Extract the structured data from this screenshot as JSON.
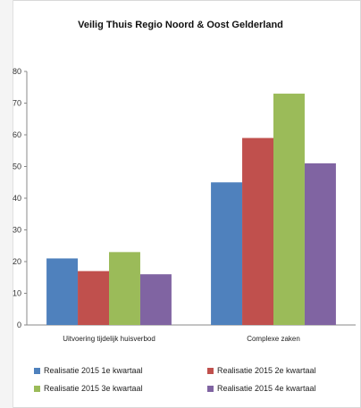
{
  "chart_data": {
    "type": "bar",
    "title": "Veilig Thuis Regio Noord & Oost Gelderland",
    "categories": [
      "Uitvoering tijdelijk huisverbod",
      "Complexe zaken"
    ],
    "series": [
      {
        "name": "Realisatie 2015 1e kwartaal",
        "values": [
          21,
          45
        ],
        "color": "#4f81bd"
      },
      {
        "name": "Realisatie 2015 2e kwartaal",
        "values": [
          17,
          59
        ],
        "color": "#c0504d"
      },
      {
        "name": "Realisatie 2015 3e kwartaal",
        "values": [
          23,
          73
        ],
        "color": "#9bbb59"
      },
      {
        "name": "Realisatie 2015 4e kwartaal",
        "values": [
          16,
          51
        ],
        "color": "#8064a2"
      }
    ],
    "ylim": [
      0,
      80
    ],
    "yticks": [
      0,
      10,
      20,
      30,
      40,
      50,
      60,
      70,
      80
    ],
    "grid": false,
    "legend_position": "bottom"
  }
}
